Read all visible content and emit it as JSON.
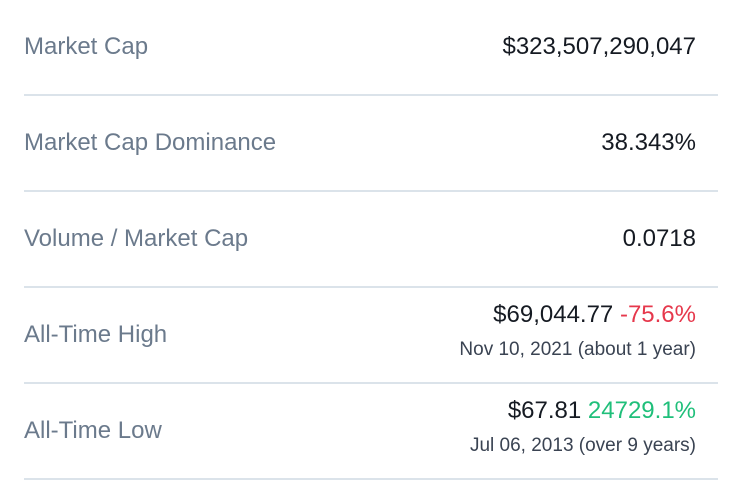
{
  "colors": {
    "label": "#6b7a8c",
    "value": "#151a22",
    "negative": "#e6384c",
    "positive": "#1fbf7a",
    "divider": "#dbe3ea"
  },
  "rows": [
    {
      "label": "Market Cap",
      "value": "$323,507,290,047"
    },
    {
      "label": "Market Cap Dominance",
      "value": "38.343%"
    },
    {
      "label": "Volume / Market Cap",
      "value": "0.0718"
    },
    {
      "label": "All-Time High",
      "value": "$69,044.77",
      "change": "-75.6%",
      "date": "Nov 10, 2021 (about 1 year)"
    },
    {
      "label": "All-Time Low",
      "value": "$67.81",
      "change": "24729.1%",
      "date": "Jul 06, 2013 (over 9 years)"
    }
  ]
}
